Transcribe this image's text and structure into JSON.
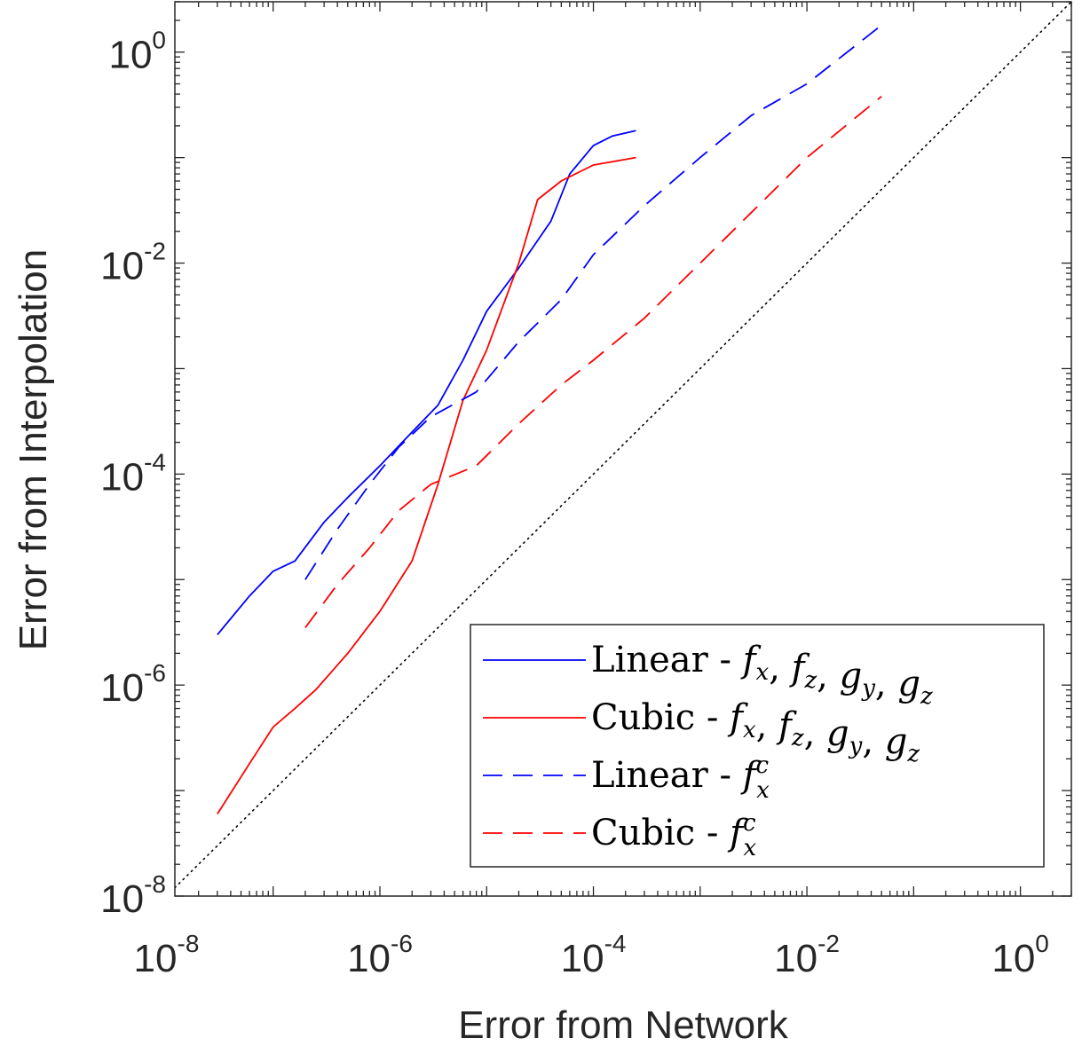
{
  "chart_data": {
    "type": "line",
    "xlabel": "Error from Network",
    "ylabel": "Error from Interpolation",
    "xscale": "log",
    "yscale": "log",
    "xlim": [
      1.2e-08,
      3.0
    ],
    "ylim": [
      1e-08,
      3.0
    ],
    "grid": false,
    "legend_position": "bottom-right",
    "x_ticks": [
      {
        "base": "10",
        "exp": "-8",
        "value": 1e-08
      },
      {
        "base": "10",
        "exp": "-6",
        "value": 1e-06
      },
      {
        "base": "10",
        "exp": "-4",
        "value": 0.0001
      },
      {
        "base": "10",
        "exp": "-2",
        "value": 0.01
      },
      {
        "base": "10",
        "exp": "0",
        "value": 1
      }
    ],
    "y_ticks": [
      {
        "base": "10",
        "exp": "-8",
        "value": 1e-08
      },
      {
        "base": "10",
        "exp": "-6",
        "value": 1e-06
      },
      {
        "base": "10",
        "exp": "-4",
        "value": 0.0001
      },
      {
        "base": "10",
        "exp": "-2",
        "value": 0.01
      },
      {
        "base": "10",
        "exp": "0",
        "value": 1
      }
    ],
    "reference_line": {
      "style": "dotted",
      "color": "#000000",
      "from": [
        1.2e-08,
        1.2e-08
      ],
      "to": [
        3,
        3
      ]
    },
    "series": [
      {
        "legend_prefix": "Linear - ",
        "legend_math": [
          [
            "f",
            "x"
          ],
          [
            "f",
            "z"
          ],
          [
            "g",
            "y"
          ],
          [
            "g",
            "z"
          ]
        ],
        "color": "#0000ff",
        "dash": "solid",
        "x": [
          3e-08,
          6e-08,
          1e-07,
          1.6e-07,
          3e-07,
          5e-07,
          1e-06,
          2e-06,
          3.5e-06,
          6e-06,
          1e-05,
          2e-05,
          4e-05,
          6e-05,
          0.0001,
          0.00015,
          0.00025
        ],
        "y": [
          3e-06,
          7e-06,
          1.2e-05,
          1.5e-05,
          3.5e-05,
          6e-05,
          0.00012,
          0.00025,
          0.00045,
          0.0012,
          0.0035,
          0.009,
          0.025,
          0.07,
          0.13,
          0.16,
          0.18
        ]
      },
      {
        "legend_prefix": "Cubic - ",
        "legend_math": [
          [
            "f",
            "x"
          ],
          [
            "f",
            "z"
          ],
          [
            "g",
            "y"
          ],
          [
            "g",
            "z"
          ]
        ],
        "color": "#ff0000",
        "dash": "solid",
        "x": [
          3e-08,
          6e-08,
          1e-07,
          1.6e-07,
          2.5e-07,
          5e-07,
          1e-06,
          2e-06,
          3.5e-06,
          6e-06,
          1e-05,
          2e-05,
          3e-05,
          5e-05,
          0.0001,
          0.00025
        ],
        "y": [
          6e-08,
          1.8e-07,
          4e-07,
          6e-07,
          9e-07,
          2e-06,
          5e-06,
          1.5e-05,
          8e-05,
          0.0005,
          0.0015,
          0.01,
          0.04,
          0.06,
          0.085,
          0.1
        ]
      },
      {
        "legend_prefix": "Linear - ",
        "legend_math": [
          [
            "f",
            "x",
            "c"
          ]
        ],
        "color": "#0000ff",
        "dash": "dashed",
        "x": [
          2e-07,
          4e-07,
          8e-07,
          1.5e-06,
          3e-06,
          8e-06,
          2e-05,
          5e-05,
          0.0001,
          0.0003,
          0.001,
          0.003,
          0.01,
          0.05
        ],
        "y": [
          1e-05,
          3e-05,
          8e-05,
          0.00018,
          0.00035,
          0.0006,
          0.0018,
          0.0045,
          0.012,
          0.035,
          0.1,
          0.25,
          0.5,
          1.8
        ]
      },
      {
        "legend_prefix": "Cubic - ",
        "legend_math": [
          [
            "f",
            "x",
            "c"
          ]
        ],
        "color": "#ff0000",
        "dash": "dashed",
        "x": [
          2e-07,
          4e-07,
          8e-07,
          1.5e-06,
          3e-06,
          8e-06,
          2e-05,
          5e-05,
          0.0001,
          0.0003,
          0.001,
          0.003,
          0.01,
          0.05
        ],
        "y": [
          3.5e-06,
          9e-06,
          2e-05,
          4.5e-05,
          8e-05,
          0.00012,
          0.0003,
          0.0007,
          0.0012,
          0.003,
          0.01,
          0.03,
          0.1,
          0.38
        ]
      }
    ]
  }
}
